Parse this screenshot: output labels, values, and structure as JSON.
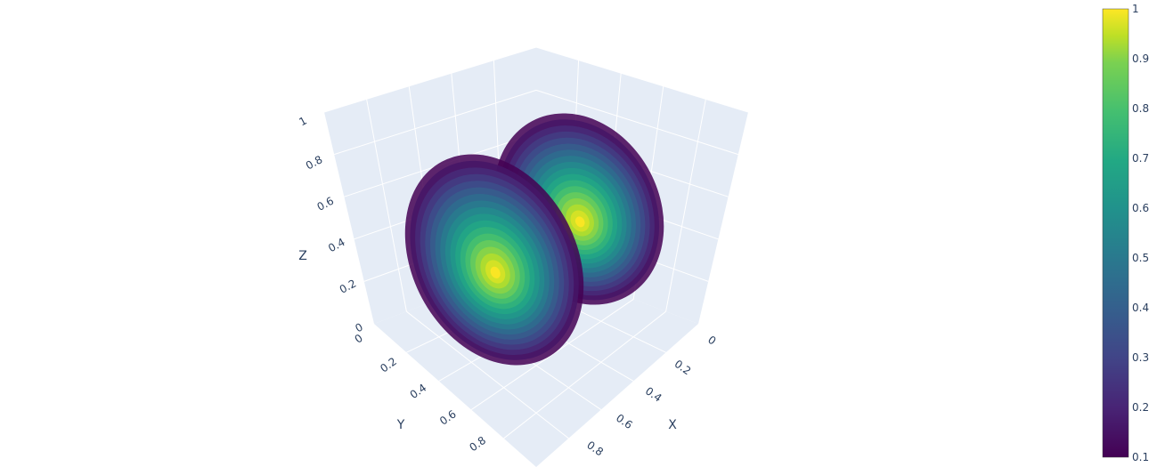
{
  "chart_data": {
    "type": "volume",
    "title": "",
    "axes": {
      "x": {
        "label": "X",
        "range": [
          0,
          1
        ],
        "ticks": [
          "0",
          "0.2",
          "0.4",
          "0.6",
          "0.8"
        ]
      },
      "y": {
        "label": "Y",
        "range": [
          0,
          1
        ],
        "ticks": [
          "0",
          "0.2",
          "0.4",
          "0.6",
          "0.8"
        ]
      },
      "z": {
        "label": "Z",
        "range": [
          0,
          1
        ],
        "ticks": [
          "0",
          "0.2",
          "0.4",
          "0.6",
          "0.8",
          "1"
        ]
      }
    },
    "grid": true,
    "colorscale": "Viridis",
    "colorbar": {
      "range": [
        0.1,
        1
      ],
      "ticks": [
        "0.1",
        "0.2",
        "0.3",
        "0.4",
        "0.5",
        "0.6",
        "0.7",
        "0.8",
        "0.9",
        "1"
      ],
      "placement": "right"
    },
    "blobs": [
      {
        "name": "",
        "center": [
          0.25,
          0.75,
          0.5
        ],
        "peak": 1
      },
      {
        "name": "",
        "center": [
          0.75,
          0.25,
          0.5
        ],
        "peak": 1
      }
    ]
  },
  "colors": {
    "scene_bg": "#e5ecf6",
    "grid": "#ffffff",
    "text": "#2a3f5f"
  }
}
